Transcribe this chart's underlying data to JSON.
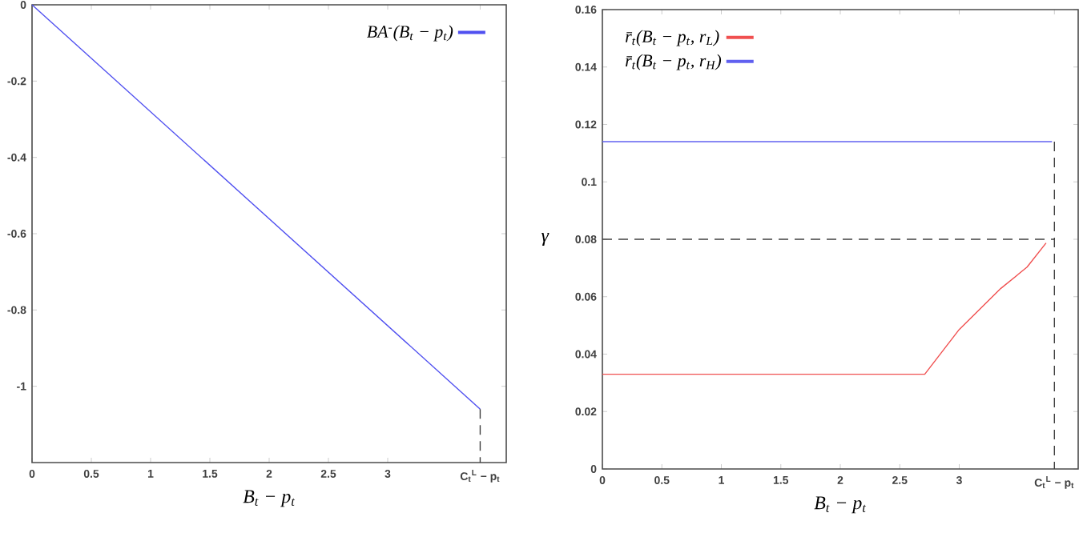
{
  "chart_data": [
    {
      "type": "line",
      "xlabel": "B$_{t}$ − p$_{t}$",
      "xlim": [
        0,
        4
      ],
      "ylim": [
        -1.2,
        0
      ],
      "xticks": [
        0,
        0.5,
        1,
        1.5,
        2,
        2.5,
        3,
        {
          "value": 3.78,
          "label": "C$_{t}$$^{L}$ − p$_{t}$"
        }
      ],
      "yticks": [
        -1,
        -0.8,
        -0.6,
        -0.4,
        -0.2,
        0
      ],
      "legend": "top right",
      "grid": false,
      "series": [
        {
          "name": "BA$^{-}$(B$_{t}$ − p$_{t}$)",
          "color": "#5050f0",
          "x": [
            0,
            3.78
          ],
          "values": [
            0,
            -1.06
          ]
        },
        {
          "color": "#404040",
          "line_style": "dashed",
          "x": [
            3.78,
            3.78
          ],
          "values": [
            -1.06,
            -1.2
          ]
        }
      ]
    },
    {
      "type": "line",
      "xlabel": "B$_{t}$ − p$_{t}$",
      "xlim": [
        0,
        4
      ],
      "ylim": [
        0,
        0.16
      ],
      "xticks": [
        0,
        0.5,
        1,
        1.5,
        2,
        2.5,
        3,
        {
          "value": 3.8,
          "label": "C$_{t}$$^{L}$ − p$_{t}$"
        }
      ],
      "yticks": [
        0,
        0.02,
        0.04,
        0.06,
        0.08,
        0.1,
        0.12,
        0.14,
        0.16
      ],
      "legend": "top left",
      "grid": false,
      "annotations": [
        "γ"
      ],
      "series": [
        {
          "name": "r̄$_{t}$(B$_{t}$ − p$_{t}$, r$_{L}$)",
          "color": "#f05050",
          "x": [
            0,
            2.71,
            3.0,
            3.35,
            3.57,
            3.73
          ],
          "values": [
            0.033,
            0.033,
            0.0486,
            0.0629,
            0.0703,
            0.0787
          ]
        },
        {
          "name": "r̄$_{t}$(B$_{t}$ − p$_{t}$, r$_{H}$)",
          "color": "#6060f0",
          "x": [
            0,
            3.78
          ],
          "values": [
            0.114,
            0.114
          ]
        },
        {
          "color": "#404040",
          "line_style": "dashed",
          "x": [
            0,
            3.8
          ],
          "values": [
            0.08,
            0.08
          ]
        },
        {
          "color": "#404040",
          "line_style": "dashed",
          "x": [
            3.8,
            3.8
          ],
          "values": [
            0.114,
            0
          ]
        }
      ]
    }
  ]
}
